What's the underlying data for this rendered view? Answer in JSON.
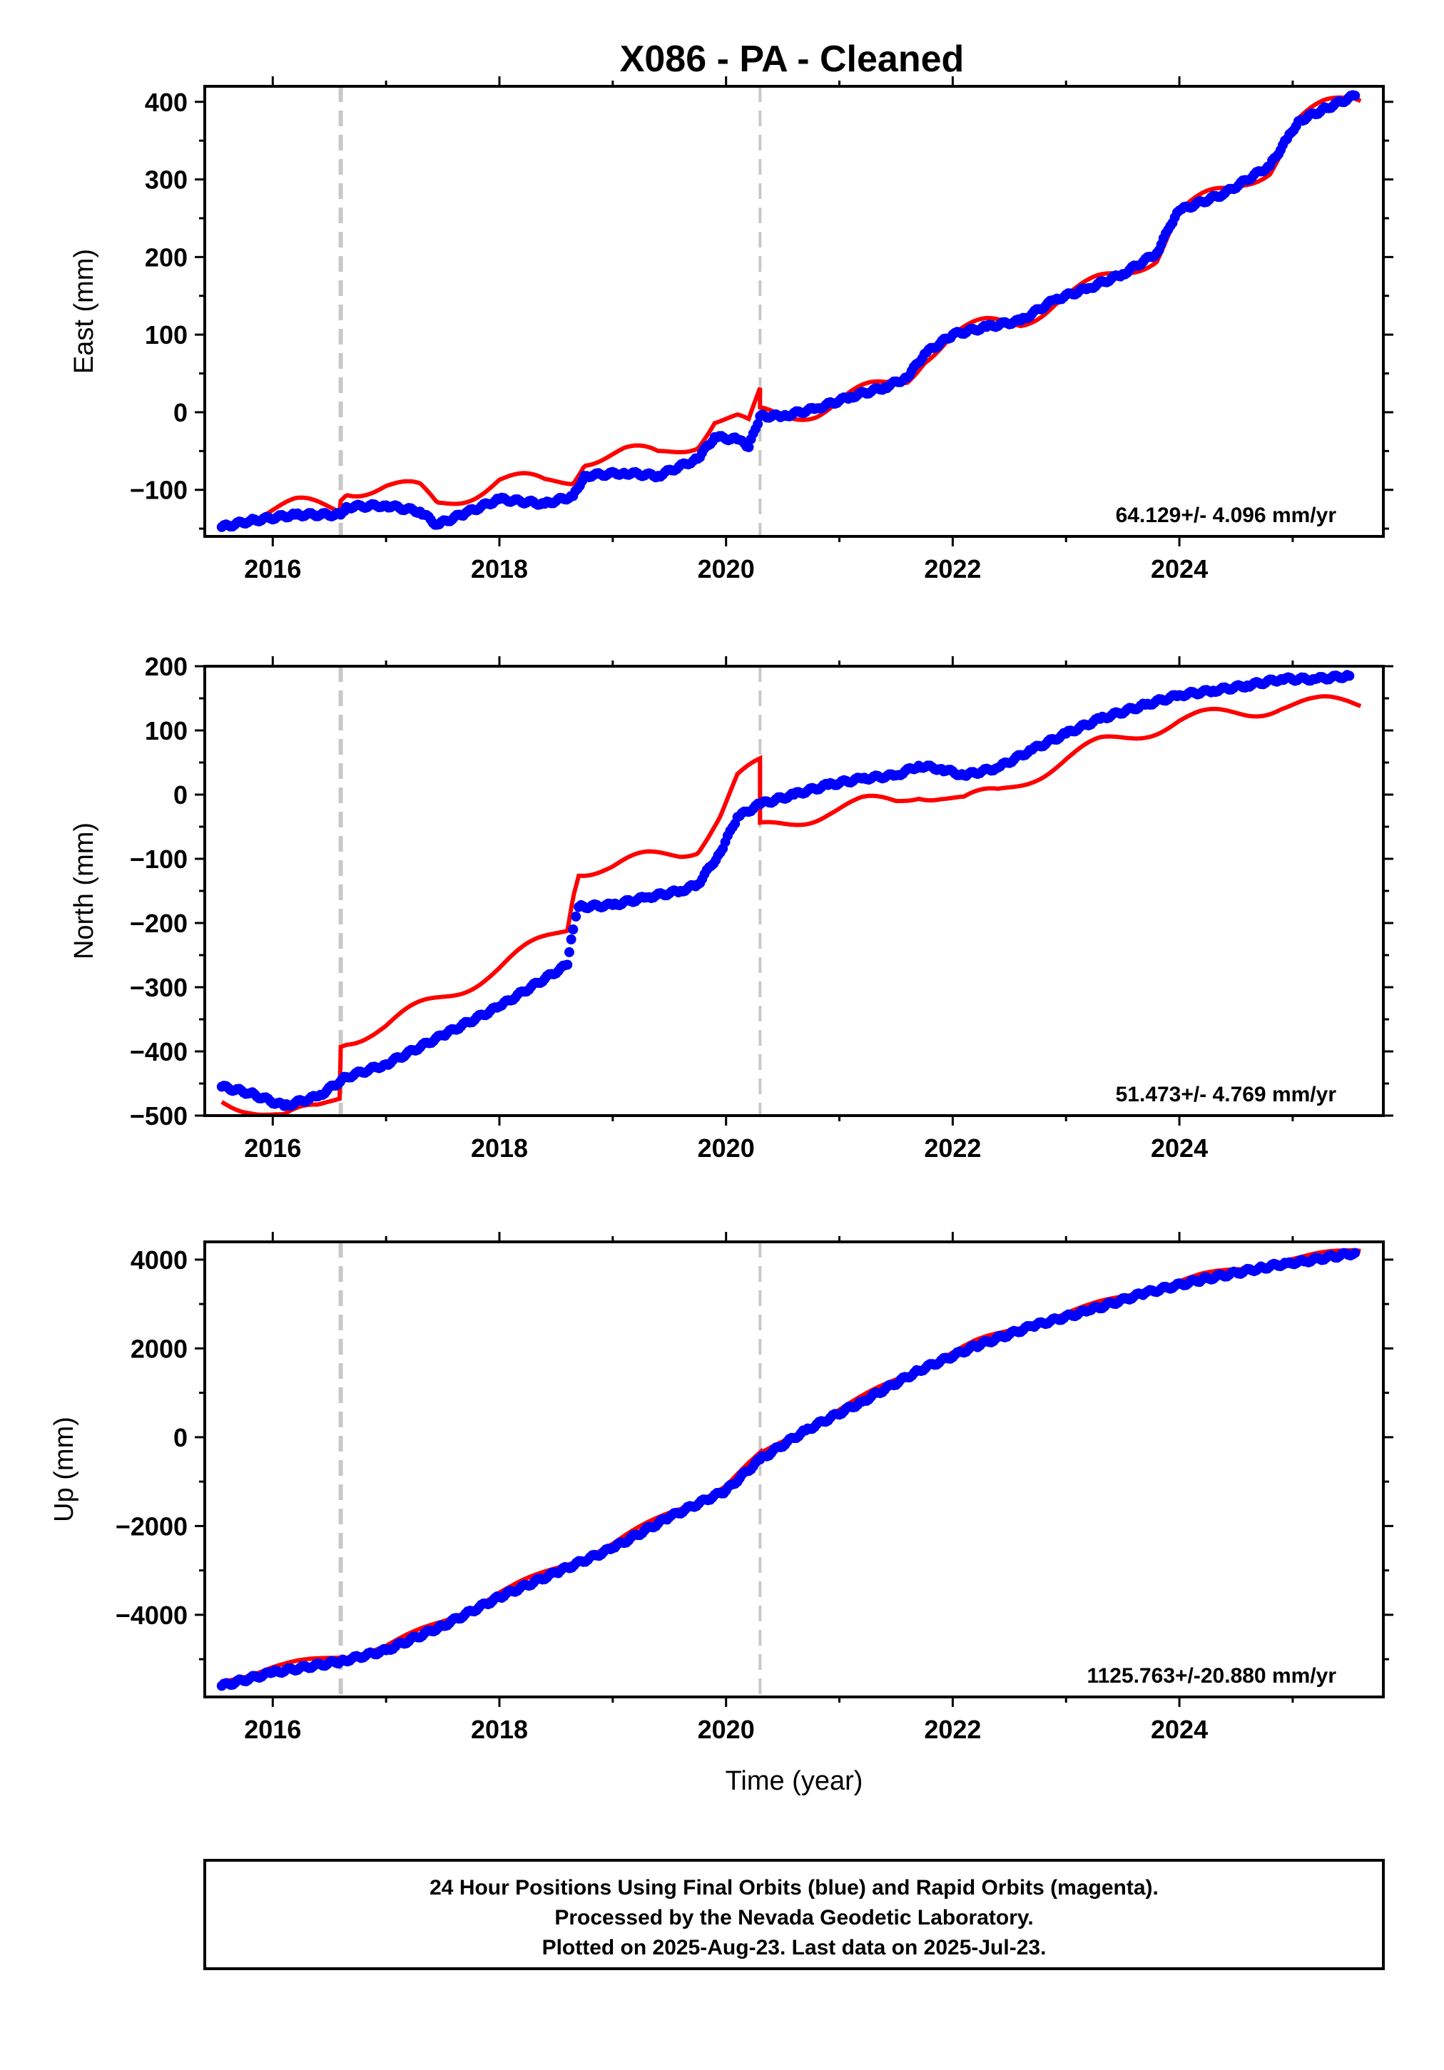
{
  "title": "X086  - PA - Cleaned",
  "colors": {
    "final": "#0000ff",
    "rapid": "#ff0000",
    "event": "#c8c8c8",
    "axis": "#000000"
  },
  "chart_data": [
    {
      "type": "scatter",
      "ylabel": "East (mm)",
      "xlabel": "",
      "xlim": [
        2015.4,
        2025.8
      ],
      "ylim": [
        -160,
        420
      ],
      "xticks": [
        2016,
        2018,
        2020,
        2022,
        2024
      ],
      "yticks": [
        -100,
        0,
        100,
        200,
        300,
        400
      ],
      "yticklabels": [
        "−100",
        "0",
        "100",
        "200",
        "300",
        "400"
      ],
      "events": [
        2016.6,
        2020.3
      ],
      "rate": "64.129+/- 4.096 mm/yr",
      "series": [
        {
          "kind": "points",
          "x": [
            2015.55,
            2015.8,
            2016.2,
            2016.6,
            2016.65,
            2017.0,
            2017.3,
            2017.45,
            2017.7,
            2018.0,
            2018.4,
            2018.65,
            2018.75,
            2019.1,
            2019.4,
            2019.75,
            2019.9,
            2020.1,
            2020.2,
            2020.3,
            2020.5,
            2020.8,
            2021.1,
            2021.4,
            2021.6,
            2021.75,
            2022.0,
            2022.3,
            2022.6,
            2022.9,
            2023.2,
            2023.5,
            2023.8,
            2023.92,
            2024.0,
            2024.4,
            2024.8,
            2024.95,
            2025.05,
            2025.3,
            2025.55
          ],
          "y": [
            -148,
            -140,
            -132,
            -132,
            -122,
            -120,
            -128,
            -145,
            -130,
            -112,
            -118,
            -108,
            -82,
            -78,
            -82,
            -60,
            -32,
            -35,
            -45,
            -5,
            -5,
            5,
            20,
            32,
            45,
            75,
            100,
            110,
            118,
            145,
            160,
            178,
            205,
            240,
            260,
            282,
            318,
            352,
            375,
            392,
            408
          ]
        }
      ]
    },
    {
      "type": "scatter",
      "ylabel": "North (mm)",
      "xlabel": "",
      "xlim": [
        2015.4,
        2025.8
      ],
      "ylim": [
        -500,
        200
      ],
      "xticks": [
        2016,
        2018,
        2020,
        2022,
        2024
      ],
      "yticks": [
        -500,
        -400,
        -300,
        -200,
        -100,
        0,
        100,
        200
      ],
      "yticklabels": [
        "−500",
        "−400",
        "−300",
        "−200",
        "−100",
        "0",
        "100",
        "200"
      ],
      "events": [
        2016.6,
        2020.3
      ],
      "rate": "51.473+/- 4.769 mm/yr",
      "series": [
        {
          "kind": "points",
          "x": [
            2015.55,
            2015.8,
            2016.1,
            2016.4,
            2016.65,
            2017.0,
            2017.5,
            2018.0,
            2018.6,
            2018.65,
            2018.7,
            2019.0,
            2019.3,
            2019.6,
            2019.75,
            2019.95,
            2020.1,
            2020.3,
            2020.6,
            2020.9,
            2021.2,
            2021.5,
            2021.7,
            2021.9,
            2022.1,
            2022.4,
            2022.7,
            2023.0,
            2023.3,
            2023.7,
            2024.0,
            2024.3,
            2024.6,
            2024.9,
            2025.2,
            2025.5
          ],
          "y": [
            -455,
            -465,
            -485,
            -470,
            -440,
            -420,
            -375,
            -330,
            -265,
            -210,
            -175,
            -172,
            -160,
            -150,
            -140,
            -90,
            -35,
            -15,
            0,
            15,
            25,
            30,
            45,
            40,
            30,
            42,
            70,
            95,
            118,
            140,
            155,
            162,
            170,
            180,
            180,
            185
          ]
        }
      ]
    },
    {
      "type": "scatter",
      "ylabel": "Up (mm)",
      "xlabel": "Time (year)",
      "xlim": [
        2015.4,
        2025.8
      ],
      "ylim": [
        -5850,
        4400
      ],
      "xticks": [
        2016,
        2018,
        2020,
        2022,
        2024
      ],
      "yticks": [
        -4000,
        -2000,
        0,
        2000,
        4000
      ],
      "yticklabels": [
        "−4000",
        "−2000",
        "0",
        "2000",
        "4000"
      ],
      "events": [
        2016.6,
        2020.3
      ],
      "rate": "1125.763+/-20.880 mm/yr",
      "series": [
        {
          "kind": "points",
          "x": [
            2015.55,
            2016.0,
            2016.6,
            2017.0,
            2017.5,
            2018.0,
            2018.5,
            2019.0,
            2019.5,
            2020.0,
            2020.3,
            2020.7,
            2021.2,
            2021.7,
            2022.2,
            2022.7,
            2023.2,
            2023.7,
            2024.2,
            2024.7,
            2024.95,
            2025.1,
            2025.55
          ],
          "y": [
            -5600,
            -5300,
            -5050,
            -4800,
            -4250,
            -3600,
            -3050,
            -2500,
            -1800,
            -1200,
            -500,
            150,
            800,
            1500,
            2050,
            2500,
            2850,
            3250,
            3550,
            3800,
            3920,
            3960,
            4150
          ]
        }
      ]
    }
  ],
  "caption": [
    "24 Hour Positions Using Final Orbits (blue) and Rapid Orbits (magenta).",
    "Processed by the Nevada Geodetic Laboratory.",
    "Plotted on 2025-Aug-23. Last data on 2025-Jul-23."
  ]
}
